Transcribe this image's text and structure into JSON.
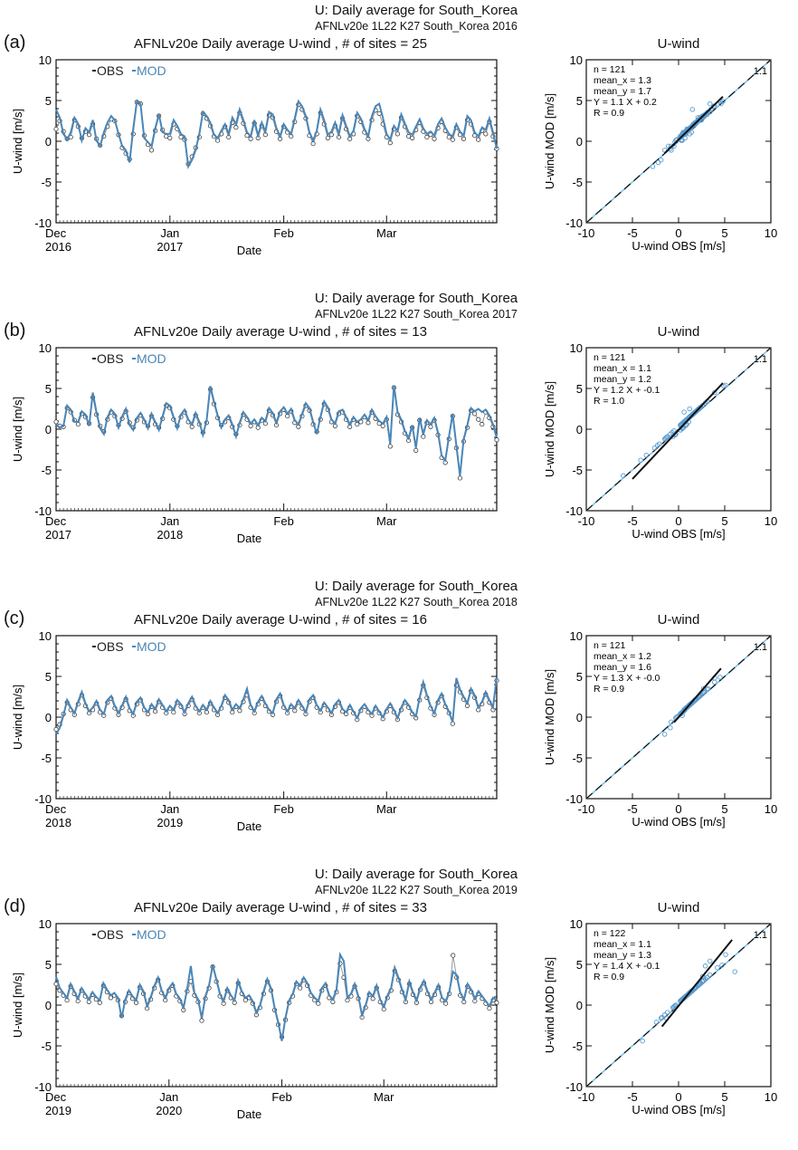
{
  "colors": {
    "obs": "#222222",
    "mod": "#4a86b8",
    "one_to_one": "#7fc4e6",
    "fit": "#111111",
    "scatter": "#5a9bd0"
  },
  "legend": {
    "obs": "OBS",
    "mod": "MOD"
  },
  "panels": [
    {
      "letter": "(a)",
      "suptitle": "U: Daily average for South_Korea",
      "subtitle": "AFNLv20e 1L22 K27 South_Korea 2016",
      "ts_title": "AFNLv20e Daily average U-wind , # of sites = 25",
      "ts_ylabel": "U-wind [m/s]",
      "ts_xlabel": "Date",
      "months": [
        [
          "Dec",
          "2016"
        ],
        [
          "Jan",
          "2017"
        ],
        [
          "Feb",
          ""
        ],
        [
          "Mar",
          ""
        ]
      ],
      "sc_title": "U-wind",
      "sc_xlabel": "U-wind OBS [m/s]",
      "sc_ylabel": "U-wind MOD [m/s]",
      "stats": [
        "n = 121",
        "mean_x = 1.3",
        "mean_y = 1.7",
        "Y = 1.1 X + 0.2",
        "R = 0.9"
      ],
      "one_to_one": "1:1"
    },
    {
      "letter": "(b)",
      "suptitle": "U: Daily average for South_Korea",
      "subtitle": "AFNLv20e 1L22 K27 South_Korea 2017",
      "ts_title": "AFNLv20e Daily average U-wind , # of sites = 13",
      "ts_ylabel": "U-wind [m/s]",
      "ts_xlabel": "Date",
      "months": [
        [
          "Dec",
          "2017"
        ],
        [
          "Jan",
          "2018"
        ],
        [
          "Feb",
          ""
        ],
        [
          "Mar",
          ""
        ]
      ],
      "sc_title": "U-wind",
      "sc_xlabel": "U-wind OBS [m/s]",
      "sc_ylabel": "U-wind MOD [m/s]",
      "stats": [
        "n = 121",
        "mean_x = 1.1",
        "mean_y = 1.2",
        "Y = 1.2 X + -0.1",
        "R = 1.0"
      ],
      "one_to_one": "1:1"
    },
    {
      "letter": "(c)",
      "suptitle": "U: Daily average for South_Korea",
      "subtitle": "AFNLv20e 1L22 K27 South_Korea 2018",
      "ts_title": "AFNLv20e Daily average U-wind , # of sites = 16",
      "ts_ylabel": "U-wind [m/s]",
      "ts_xlabel": "Date",
      "months": [
        [
          "Dec",
          "2018"
        ],
        [
          "Jan",
          "2019"
        ],
        [
          "Feb",
          ""
        ],
        [
          "Mar",
          ""
        ]
      ],
      "sc_title": "U-wind",
      "sc_xlabel": "U-wind OBS [m/s]",
      "sc_ylabel": "U-wind MOD [m/s]",
      "stats": [
        "n = 121",
        "mean_x = 1.2",
        "mean_y = 1.6",
        "Y = 1.3 X + -0.0",
        "R = 0.9"
      ],
      "one_to_one": "1:1"
    },
    {
      "letter": "(d)",
      "suptitle": "U: Daily average for South_Korea",
      "subtitle": "AFNLv20e 1L22 K27 South_Korea 2019",
      "ts_title": "AFNLv20e Daily average U-wind , # of sites = 33",
      "ts_ylabel": "U-wind [m/s]",
      "ts_xlabel": "Date",
      "months": [
        [
          "Dec",
          "2019"
        ],
        [
          "Jan",
          "2020"
        ],
        [
          "Feb",
          ""
        ],
        [
          "Mar",
          ""
        ]
      ],
      "sc_title": "U-wind",
      "sc_xlabel": "U-wind OBS [m/s]",
      "sc_ylabel": "U-wind MOD [m/s]",
      "stats": [
        "n = 122",
        "mean_x = 1.1",
        "mean_y = 1.3",
        "Y = 1.4 X + -0.1",
        "R = 0.9"
      ],
      "one_to_one": "1:1"
    }
  ],
  "chart_data": [
    {
      "type": "line",
      "panel": "(a)",
      "series_names": [
        "OBS",
        "MOD"
      ],
      "ylim": [
        -10,
        10
      ],
      "yticks": [
        -10,
        -5,
        0,
        5,
        10
      ],
      "x_start": "2016-12-01",
      "n_days": 121,
      "obs": [
        1.5,
        2.5,
        1.2,
        0.3,
        0.5,
        2.6,
        1.8,
        0.4,
        1.2,
        0.8,
        2.1,
        0.3,
        -0.5,
        0.6,
        1.8,
        2.7,
        2.5,
        0.8,
        -0.8,
        -1.5,
        -2.2,
        0.9,
        4.8,
        4.6,
        0.7,
        -0.4,
        -1.1,
        1.3,
        3.1,
        1.4,
        0.6,
        0.4,
        2.1,
        1.5,
        0.5,
        0.2,
        -2.8,
        -1.9,
        -0.8,
        0.5,
        3.4,
        2.8,
        1.9,
        0.6,
        0.1,
        0.9,
        1.8,
        0.5,
        2.3,
        1.7,
        3.5,
        2.2,
        0.7,
        0.3,
        2.2,
        0.4,
        1.9,
        0.8,
        3.2,
        2.9,
        1.2,
        0.3,
        1.8,
        1.1,
        0.6,
        2.4,
        4.5,
        3.9,
        2.8,
        0.7,
        -0.3,
        0.9,
        3.5,
        2.1,
        0.4,
        0.8,
        1.9,
        0.5,
        2.8,
        1.5,
        0.3,
        0.9,
        3.1,
        2.4,
        1.1,
        0.3,
        2.6,
        3.8,
        3.4,
        2.1,
        0.5,
        -0.2,
        1.5,
        0.9,
        2.9,
        1.8,
        0.6,
        0.4,
        1.4,
        2.3,
        1.2,
        0.5,
        0.8,
        0.3,
        1.6,
        2.4,
        1.3,
        0.5,
        0.2,
        1.7,
        0.8,
        0.3,
        2.6,
        2.1,
        0.7,
        0.2,
        1.3,
        0.9,
        2.4,
        0.6,
        -0.9
      ],
      "mod": [
        3.9,
        2.9,
        0.9,
        0.2,
        1.1,
        2.9,
        2.2,
        0.1,
        1.6,
        1.1,
        2.6,
        0.1,
        -0.6,
        1.1,
        2.3,
        3.1,
        2.6,
        0.9,
        -0.6,
        -1.1,
        -2.6,
        1.5,
        4.9,
        4.6,
        0.4,
        -0.1,
        -0.6,
        1.6,
        3.3,
        1.1,
        0.9,
        0.9,
        2.6,
        1.9,
        0.9,
        0.6,
        -3.1,
        -2.3,
        -1.1,
        0.9,
        3.6,
        3.1,
        2.3,
        0.8,
        0.4,
        1.3,
        2.1,
        0.9,
        2.9,
        2.1,
        3.9,
        2.6,
        1.1,
        0.6,
        2.6,
        0.7,
        2.3,
        1.2,
        3.6,
        3.3,
        1.6,
        0.6,
        2.1,
        1.4,
        0.9,
        2.8,
        4.9,
        4.3,
        3.1,
        1.1,
        0.1,
        1.3,
        3.9,
        2.6,
        0.8,
        1.2,
        2.3,
        0.9,
        3.2,
        1.9,
        0.6,
        1.3,
        3.5,
        2.8,
        1.5,
        0.6,
        3.1,
        4.3,
        4.6,
        2.9,
        0.9,
        0.2,
        1.9,
        1.3,
        3.3,
        2.2,
        1.1,
        0.8,
        1.8,
        2.7,
        1.6,
        0.9,
        1.2,
        0.7,
        2.1,
        2.8,
        1.7,
        0.9,
        0.6,
        2.1,
        1.2,
        0.7,
        3.1,
        2.6,
        1.1,
        0.6,
        1.7,
        1.4,
        2.8,
        1.1,
        -0.9
      ]
    },
    {
      "type": "scatter",
      "panel": "(a)",
      "xlim": [
        -10,
        10
      ],
      "ylim": [
        -10,
        10
      ],
      "xticks": [
        -10,
        -5,
        0,
        5,
        10
      ],
      "yticks": [
        -10,
        -5,
        0,
        5,
        10
      ],
      "fit": {
        "slope": 1.1,
        "intercept": 0.2
      },
      "n": 121,
      "x_min": -1.5,
      "x_max": 4.8
    },
    {
      "type": "line",
      "panel": "(b)",
      "series_names": [
        "OBS",
        "MOD"
      ],
      "ylim": [
        -10,
        10
      ],
      "yticks": [
        -10,
        -5,
        0,
        5,
        10
      ],
      "x_start": "2017-12-01",
      "n_days": 121,
      "obs": [
        0.9,
        0.4,
        0.3,
        2.6,
        2.1,
        1.1,
        0.6,
        1.9,
        1.5,
        0.7,
        3.9,
        1.8,
        0.4,
        -0.3,
        1.2,
        2.1,
        1.6,
        0.5,
        1.3,
        2.2,
        0.8,
        0.2,
        1.1,
        1.7,
        0.9,
        0.4,
        1.6,
        0.6,
        0.2,
        1.3,
        2.9,
        2.6,
        1.2,
        0.4,
        1.5,
        2.1,
        0.9,
        0.3,
        1.7,
        0.6,
        -0.4,
        0.8,
        4.9,
        3.1,
        1.4,
        0.5,
        0.9,
        1.4,
        0.3,
        -0.6,
        0.5,
        1.8,
        1.2,
        0.4,
        0.9,
        0.2,
        1.1,
        0.7,
        2.3,
        1.7,
        0.5,
        1.9,
        2.4,
        1.6,
        2.2,
        0.8,
        0.3,
        1.6,
        2.9,
        2.3,
        0.6,
        -0.3,
        1.2,
        3.1,
        2.4,
        0.9,
        0.4,
        1.9,
        2.1,
        1.2,
        0.3,
        1.2,
        0.6,
        0.9,
        1.5,
        0.8,
        2.1,
        1.3,
        0.7,
        0.4,
        1.2,
        -2.1,
        5.1,
        1.8,
        0.9,
        -0.5,
        -1.4,
        0.2,
        -2.6,
        1.1,
        -0.9,
        0.8,
        0.3,
        1.1,
        -0.7,
        -3.5,
        -4.1,
        -1.2,
        1.6,
        -2.3,
        -6.0,
        -1.5,
        0.2,
        2.3,
        1.9,
        1.2,
        0.6,
        2.1,
        1.4,
        0.3,
        -1.3
      ],
      "mod": [
        0.6,
        0.2,
        0.4,
        2.9,
        2.4,
        0.9,
        0.9,
        2.2,
        1.8,
        0.4,
        4.5,
        2.1,
        0.1,
        -0.6,
        1.5,
        2.4,
        1.9,
        0.2,
        1.6,
        2.5,
        0.5,
        -0.1,
        1.4,
        2.0,
        1.2,
        0.1,
        1.9,
        0.9,
        -0.1,
        1.6,
        3.2,
        2.9,
        1.5,
        0.1,
        1.8,
        2.4,
        1.2,
        0.6,
        2.0,
        0.9,
        -0.7,
        1.1,
        5.3,
        3.4,
        1.7,
        0.2,
        1.2,
        1.7,
        0.6,
        -0.9,
        0.8,
        2.1,
        1.5,
        0.7,
        1.2,
        0.5,
        1.4,
        1.0,
        2.6,
        2.0,
        0.8,
        2.2,
        2.7,
        1.9,
        2.5,
        1.1,
        0.6,
        1.9,
        3.2,
        2.6,
        0.9,
        -0.6,
        1.5,
        3.4,
        2.7,
        1.2,
        0.7,
        2.2,
        2.4,
        1.5,
        0.6,
        1.5,
        0.9,
        1.2,
        1.8,
        1.1,
        2.4,
        1.6,
        1.0,
        0.7,
        1.5,
        -1.8,
        5.4,
        2.1,
        1.2,
        -0.2,
        -1.1,
        0.5,
        -2.3,
        1.4,
        -0.6,
        1.1,
        0.6,
        1.4,
        -0.4,
        -3.2,
        -3.8,
        -0.9,
        1.9,
        -2.0,
        -5.7,
        -1.2,
        0.5,
        2.6,
        2.2,
        2.5,
        2.1,
        2.4,
        1.7,
        0.6,
        -1.0
      ]
    },
    {
      "type": "scatter",
      "panel": "(b)",
      "xlim": [
        -10,
        10
      ],
      "ylim": [
        -10,
        10
      ],
      "xticks": [
        -10,
        -5,
        0,
        5,
        10
      ],
      "yticks": [
        -10,
        -5,
        0,
        5,
        10
      ],
      "fit": {
        "slope": 1.2,
        "intercept": -0.1
      },
      "n": 121,
      "x_min": -5.0,
      "x_max": 4.8
    },
    {
      "type": "line",
      "panel": "(c)",
      "series_names": [
        "OBS",
        "MOD"
      ],
      "ylim": [
        -10,
        10
      ],
      "yticks": [
        -10,
        -5,
        0,
        5,
        10
      ],
      "x_start": "2018-12-01",
      "n_days": 121,
      "obs": [
        -1.5,
        -0.9,
        0.4,
        1.8,
        0.9,
        0.3,
        1.6,
        2.7,
        1.4,
        0.5,
        0.9,
        1.7,
        0.6,
        0.2,
        1.8,
        2.3,
        1.1,
        0.3,
        1.2,
        2.2,
        0.8,
        0.2,
        1.6,
        2.1,
        0.9,
        0.4,
        1.3,
        0.7,
        1.9,
        1.2,
        0.5,
        1.1,
        0.6,
        1.8,
        1.3,
        0.4,
        1.4,
        2.2,
        1.1,
        0.5,
        1.2,
        0.6,
        1.7,
        0.9,
        0.3,
        1.1,
        2.4,
        1.8,
        0.6,
        1.3,
        0.8,
        1.9,
        2.7,
        1.2,
        0.5,
        1.6,
        2.3,
        1.4,
        0.7,
        0.3,
        1.9,
        2.6,
        1.2,
        0.5,
        1.3,
        0.8,
        1.8,
        1.1,
        0.4,
        1.9,
        2.4,
        1.2,
        0.6,
        1.5,
        0.9,
        0.3,
        1.3,
        1.8,
        0.7,
        0.4,
        1.2,
        0.5,
        -0.3,
        0.8,
        1.3,
        0.6,
        0.2,
        1.1,
        0.5,
        -0.2,
        0.7,
        1.4,
        0.6,
        -0.3,
        0.9,
        1.8,
        1.2,
        0.4,
        -0.1,
        2.1,
        3.9,
        2.4,
        1.1,
        0.3,
        1.8,
        2.6,
        1.3,
        0.5,
        -0.8,
        3.9,
        3.1,
        2.2,
        1.4,
        3.2,
        2.4,
        0.9,
        1.6,
        2.8,
        1.8,
        0.9,
        4.5
      ],
      "mod": [
        -2.1,
        -1.3,
        0.2,
        2.1,
        1.2,
        0.5,
        1.9,
        3.1,
        1.7,
        0.7,
        1.2,
        2.0,
        0.9,
        0.4,
        2.1,
        2.6,
        1.4,
        0.5,
        1.5,
        2.5,
        1.1,
        0.4,
        1.9,
        2.4,
        1.2,
        0.6,
        1.6,
        1.0,
        2.2,
        1.5,
        0.7,
        1.4,
        0.9,
        2.1,
        1.6,
        0.6,
        1.7,
        2.5,
        1.4,
        0.7,
        1.5,
        0.9,
        2.0,
        1.2,
        0.5,
        1.4,
        2.7,
        2.1,
        0.9,
        1.6,
        1.1,
        2.2,
        3.5,
        1.5,
        0.7,
        1.9,
        2.6,
        1.7,
        0.9,
        0.5,
        2.2,
        2.9,
        1.5,
        0.7,
        1.6,
        1.1,
        2.1,
        1.4,
        0.6,
        2.2,
        2.7,
        1.5,
        0.8,
        1.8,
        1.2,
        0.5,
        1.6,
        2.1,
        1.0,
        0.6,
        1.5,
        0.7,
        -0.1,
        1.1,
        1.6,
        0.9,
        0.4,
        1.4,
        0.7,
        0.0,
        1.0,
        1.7,
        0.9,
        -0.1,
        1.2,
        2.1,
        1.5,
        0.6,
        0.1,
        2.4,
        4.3,
        2.7,
        1.4,
        0.5,
        2.1,
        2.9,
        1.6,
        0.7,
        -0.6,
        4.8,
        3.4,
        2.5,
        1.7,
        3.5,
        2.7,
        1.2,
        1.9,
        3.1,
        2.1,
        1.2,
        4.9
      ]
    },
    {
      "type": "scatter",
      "panel": "(c)",
      "xlim": [
        -10,
        10
      ],
      "ylim": [
        -10,
        10
      ],
      "xticks": [
        -10,
        -5,
        0,
        5,
        10
      ],
      "yticks": [
        -10,
        -5,
        0,
        5,
        10
      ],
      "fit": {
        "slope": 1.3,
        "intercept": -0.0
      },
      "n": 121,
      "x_min": -0.5,
      "x_max": 4.6
    },
    {
      "type": "line",
      "panel": "(d)",
      "series_names": [
        "OBS",
        "MOD"
      ],
      "ylim": [
        -10,
        10
      ],
      "yticks": [
        -10,
        -5,
        0,
        5,
        10
      ],
      "x_start": "2019-12-01",
      "n_days": 122,
      "obs": [
        2.6,
        1.8,
        1.2,
        0.6,
        2.3,
        1.4,
        0.5,
        1.8,
        1.1,
        0.4,
        1.3,
        0.7,
        0.3,
        2.4,
        1.6,
        0.9,
        1.2,
        0.6,
        -1.3,
        0.4,
        1.5,
        0.8,
        0.3,
        2.2,
        1.4,
        -0.4,
        0.7,
        2.1,
        3.1,
        1.5,
        0.6,
        1.8,
        2.4,
        1.1,
        0.5,
        -0.6,
        1.7,
        2.9,
        1.2,
        0.4,
        -1.9,
        0.8,
        2.1,
        4.7,
        2.9,
        1.1,
        0.2,
        1.8,
        0.9,
        0.3,
        2.7,
        1.4,
        0.6,
        0.9,
        0.2,
        -1.2,
        -0.3,
        1.4,
        2.9,
        1.8,
        -0.6,
        -2.4,
        -3.9,
        -1.8,
        0.3,
        1.1,
        2.6,
        2.1,
        3.1,
        2.4,
        1.2,
        0.6,
        0.2,
        1.8,
        2.4,
        0.9,
        0.4,
        1.6,
        5.1,
        3.4,
        0.6,
        1.1,
        2.3,
        0.8,
        -1.5,
        -0.3,
        1.3,
        0.8,
        2.1,
        0.4,
        -0.5,
        0.9,
        1.8,
        4.2,
        3.1,
        1.6,
        0.4,
        2.6,
        1.3,
        0.3,
        1.9,
        2.7,
        1.4,
        0.4,
        1.3,
        2.2,
        0.6,
        0.2,
        1.4,
        6.1,
        3.4,
        1.2,
        0.4,
        2.3,
        1.6,
        0.5,
        1.4,
        0.8,
        0.2,
        -0.4,
        0.6,
        0.3
      ],
      "mod": [
        3.5,
        2.1,
        1.5,
        0.9,
        2.6,
        1.7,
        0.8,
        2.1,
        1.4,
        0.7,
        1.6,
        1.0,
        0.6,
        2.7,
        1.9,
        1.2,
        1.5,
        0.9,
        -1.6,
        0.7,
        1.8,
        1.1,
        0.6,
        2.5,
        1.7,
        -0.1,
        1.0,
        2.4,
        3.4,
        1.8,
        0.9,
        2.1,
        2.7,
        1.4,
        0.8,
        -0.3,
        2.0,
        4.8,
        1.5,
        0.7,
        -1.6,
        1.1,
        2.4,
        4.9,
        3.2,
        1.4,
        0.5,
        2.1,
        1.2,
        0.6,
        3.0,
        1.7,
        0.9,
        1.2,
        0.5,
        -0.9,
        0.0,
        1.7,
        3.2,
        2.1,
        -0.3,
        -2.1,
        -4.4,
        -1.5,
        0.6,
        1.4,
        2.9,
        2.4,
        3.4,
        2.7,
        1.5,
        0.9,
        0.5,
        2.1,
        2.7,
        1.2,
        0.7,
        1.9,
        6.2,
        5.4,
        0.9,
        1.4,
        2.6,
        1.1,
        -1.2,
        0.0,
        1.6,
        1.1,
        2.4,
        0.7,
        -0.2,
        1.2,
        2.1,
        4.6,
        3.4,
        1.9,
        0.7,
        2.9,
        1.6,
        0.6,
        2.2,
        3.0,
        1.7,
        0.7,
        1.6,
        2.5,
        0.9,
        0.5,
        1.7,
        4.1,
        3.7,
        1.5,
        0.7,
        2.6,
        1.9,
        0.8,
        1.7,
        1.1,
        0.5,
        -0.1,
        0.9,
        0.6
      ]
    },
    {
      "type": "scatter",
      "panel": "(d)",
      "xlim": [
        -10,
        10
      ],
      "ylim": [
        -10,
        10
      ],
      "xticks": [
        -10,
        -5,
        0,
        5,
        10
      ],
      "yticks": [
        -10,
        -5,
        0,
        5,
        10
      ],
      "fit": {
        "slope": 1.4,
        "intercept": -0.1
      },
      "n": 122,
      "x_min": -1.8,
      "x_max": 5.8
    }
  ]
}
